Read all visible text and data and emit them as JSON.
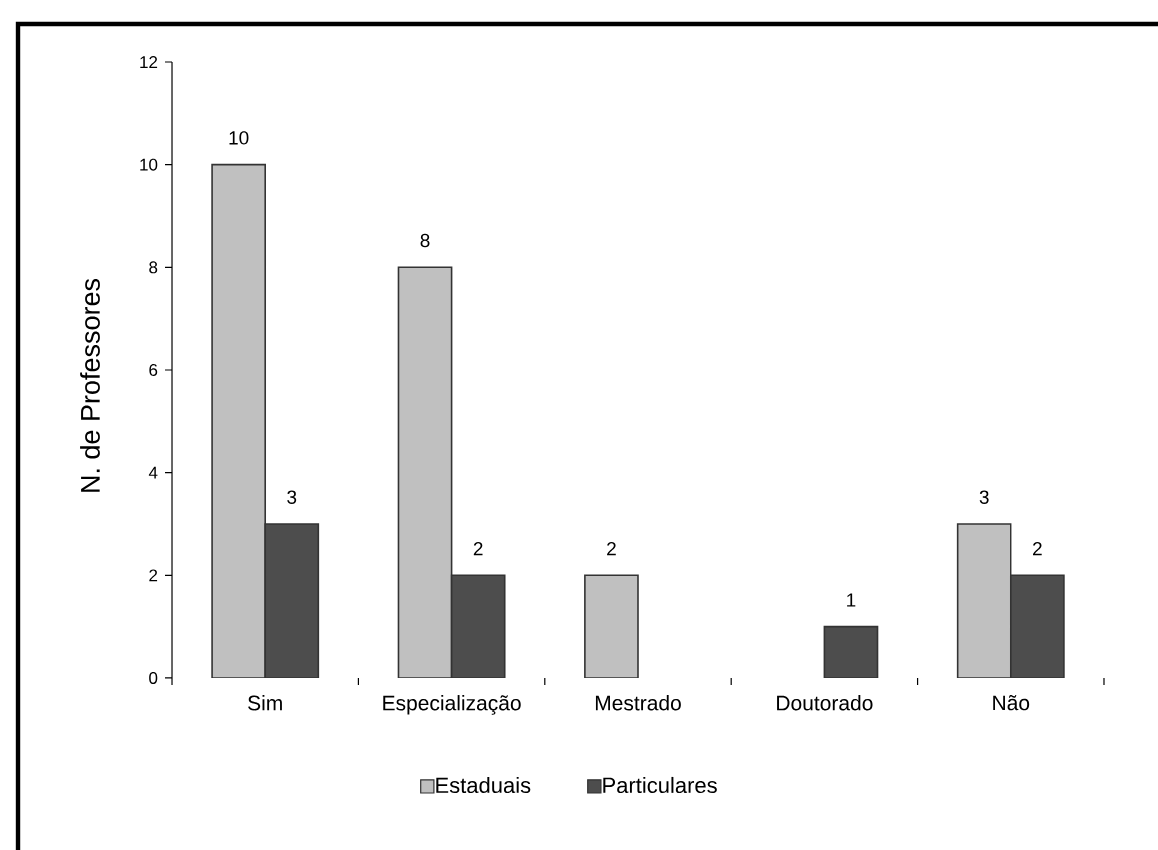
{
  "chart_data": {
    "type": "bar",
    "ylabel": "N. de Professores",
    "categories": [
      "Sim",
      "Especialização",
      "Mestrado",
      "Doutorado",
      "Não"
    ],
    "series": [
      {
        "name": "Estaduais",
        "color": "#c0c0c0",
        "values": [
          10,
          8,
          2,
          null,
          3
        ]
      },
      {
        "name": "Particulares",
        "color": "#4d4d4d",
        "values": [
          3,
          2,
          null,
          1,
          2
        ]
      }
    ],
    "ylim": [
      0,
      12
    ],
    "yticks": [
      0,
      2,
      4,
      6,
      8,
      10,
      12
    ],
    "data_labels": true,
    "legend": "bottom"
  }
}
